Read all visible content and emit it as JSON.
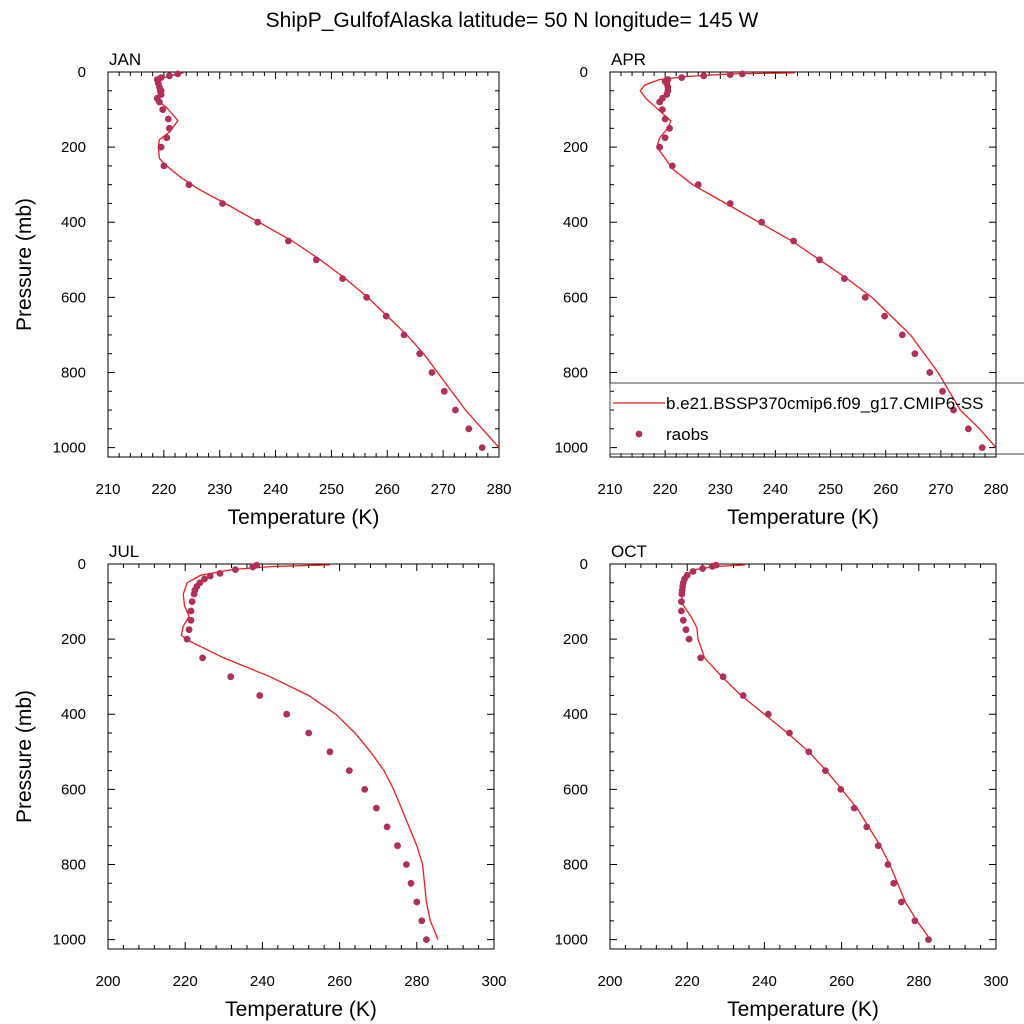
{
  "figure": {
    "title": "ShipP_GulfofAlaska  latitude= 50 N longitude= 145 W",
    "colors": {
      "model_line": "#ee1c1c",
      "obs_marker": "#b0305a",
      "axis": "#000000"
    }
  },
  "legend": {
    "panel": "APR",
    "entries": [
      {
        "label": "b.e21.BSSP370cmip6.f09_g17.CMIP6-SS",
        "kind": "line"
      },
      {
        "label": "raobs",
        "kind": "marker"
      }
    ]
  },
  "chart_data": [
    {
      "type": "line",
      "panel_label": "JAN",
      "xlabel": "Temperature (K)",
      "ylabel": "Pressure (mb)",
      "xlim": [
        210,
        280
      ],
      "ylim": [
        1025,
        0
      ],
      "xticks": [
        210,
        220,
        230,
        240,
        250,
        260,
        270,
        280
      ],
      "yticks": [
        0,
        200,
        400,
        600,
        800,
        1000
      ],
      "series": [
        {
          "name": "b.e21.BSSP370cmip6.f09_g17.CMIP6-SS",
          "style": "line",
          "points": [
            [
              223.5,
              2
            ],
            [
              221,
              10
            ],
            [
              219,
              20
            ],
            [
              218.8,
              40
            ],
            [
              219,
              60
            ],
            [
              219.2,
              80
            ],
            [
              220.5,
              95
            ],
            [
              222,
              120
            ],
            [
              222.5,
              130
            ],
            [
              221,
              160
            ],
            [
              219.2,
              180
            ],
            [
              219,
              200
            ],
            [
              219.2,
              230
            ],
            [
              220.5,
              250
            ],
            [
              223,
              280
            ],
            [
              226,
              310
            ],
            [
              231,
              350
            ],
            [
              237,
              400
            ],
            [
              243,
              450
            ],
            [
              248,
              500
            ],
            [
              252.5,
              550
            ],
            [
              256.5,
              600
            ],
            [
              260,
              650
            ],
            [
              263.5,
              700
            ],
            [
              266.5,
              750
            ],
            [
              269,
              800
            ],
            [
              271.5,
              850
            ],
            [
              274,
              900
            ],
            [
              277,
              950
            ],
            [
              280,
              1000
            ]
          ]
        },
        {
          "name": "raobs",
          "style": "marker",
          "points": [
            [
              222.5,
              5
            ],
            [
              221,
              10
            ],
            [
              219.5,
              15
            ],
            [
              218.8,
              20
            ],
            [
              219,
              30
            ],
            [
              219.2,
              40
            ],
            [
              219.5,
              50
            ],
            [
              219.5,
              60
            ],
            [
              218.8,
              70
            ],
            [
              219.2,
              80
            ],
            [
              219.8,
              100
            ],
            [
              220.8,
              125
            ],
            [
              221,
              150
            ],
            [
              220.5,
              175
            ],
            [
              219.5,
              200
            ],
            [
              220,
              250
            ],
            [
              224.5,
              300
            ],
            [
              230.5,
              350
            ],
            [
              236.8,
              400
            ],
            [
              242.3,
              450
            ],
            [
              247.3,
              500
            ],
            [
              252,
              550
            ],
            [
              256.3,
              600
            ],
            [
              259.8,
              650
            ],
            [
              263,
              700
            ],
            [
              265.8,
              750
            ],
            [
              268,
              800
            ],
            [
              270.2,
              850
            ],
            [
              272.2,
              900
            ],
            [
              274.6,
              950
            ],
            [
              277,
              1000
            ]
          ]
        }
      ]
    },
    {
      "type": "line",
      "panel_label": "APR",
      "xlabel": "Temperature (K)",
      "ylabel": "",
      "xlim": [
        210,
        280
      ],
      "ylim": [
        1025,
        0
      ],
      "xticks": [
        210,
        220,
        230,
        240,
        250,
        260,
        270,
        280
      ],
      "yticks": [
        0,
        200,
        400,
        600,
        800,
        1000
      ],
      "series": [
        {
          "name": "b.e21.BSSP370cmip6.f09_g17.CMIP6-SS",
          "style": "line",
          "points": [
            [
              243.5,
              2
            ],
            [
              232,
              5
            ],
            [
              224,
              12
            ],
            [
              219,
              20
            ],
            [
              216.3,
              35
            ],
            [
              215.5,
              50
            ],
            [
              216.5,
              70
            ],
            [
              218,
              90
            ],
            [
              219.5,
              110
            ],
            [
              221,
              130
            ],
            [
              220.5,
              150
            ],
            [
              219,
              175
            ],
            [
              218.5,
              200
            ],
            [
              220,
              230
            ],
            [
              221.5,
              260
            ],
            [
              225,
              300
            ],
            [
              231,
              350
            ],
            [
              237,
              400
            ],
            [
              243,
              450
            ],
            [
              248,
              500
            ],
            [
              253,
              550
            ],
            [
              257.5,
              600
            ],
            [
              261,
              650
            ],
            [
              264.5,
              700
            ],
            [
              267,
              750
            ],
            [
              269.5,
              800
            ],
            [
              271.5,
              850
            ],
            [
              273.5,
              900
            ],
            [
              277,
              950
            ],
            [
              280,
              1000
            ]
          ]
        },
        {
          "name": "raobs",
          "style": "marker",
          "points": [
            [
              234,
              5
            ],
            [
              231.8,
              7
            ],
            [
              227,
              10
            ],
            [
              223,
              15
            ],
            [
              220.5,
              20
            ],
            [
              220,
              25
            ],
            [
              220.3,
              30
            ],
            [
              220.5,
              40
            ],
            [
              220.5,
              50
            ],
            [
              220.3,
              60
            ],
            [
              219.5,
              70
            ],
            [
              219,
              80
            ],
            [
              219.5,
              100
            ],
            [
              220,
              125
            ],
            [
              220.8,
              150
            ],
            [
              220,
              175
            ],
            [
              219,
              200
            ],
            [
              221.3,
              250
            ],
            [
              226,
              300
            ],
            [
              231.8,
              350
            ],
            [
              237.5,
              400
            ],
            [
              243.3,
              450
            ],
            [
              248,
              500
            ],
            [
              252.5,
              550
            ],
            [
              256.3,
              600
            ],
            [
              259.8,
              650
            ],
            [
              263,
              700
            ],
            [
              265.3,
              750
            ],
            [
              268,
              800
            ],
            [
              270.3,
              850
            ],
            [
              272.3,
              900
            ],
            [
              275,
              950
            ],
            [
              277.5,
              1000
            ]
          ]
        }
      ]
    },
    {
      "type": "line",
      "panel_label": "JUL",
      "xlabel": "Temperature (K)",
      "ylabel": "Pressure (mb)",
      "xlim": [
        200,
        300
      ],
      "ylim": [
        1025,
        0
      ],
      "xticks": [
        200,
        220,
        240,
        260,
        280,
        300
      ],
      "yticks": [
        0,
        200,
        400,
        600,
        800,
        1000
      ],
      "series": [
        {
          "name": "b.e21.BSSP370cmip6.f09_g17.CMIP6-SS",
          "style": "line",
          "points": [
            [
              257.5,
              2
            ],
            [
              242,
              7
            ],
            [
              232,
              15
            ],
            [
              224,
              30
            ],
            [
              220.5,
              50
            ],
            [
              219.5,
              80
            ],
            [
              219.8,
              110
            ],
            [
              221,
              140
            ],
            [
              219.5,
              165
            ],
            [
              219,
              190
            ],
            [
              221,
              205
            ],
            [
              230,
              250
            ],
            [
              242,
              300
            ],
            [
              252,
              350
            ],
            [
              259,
              400
            ],
            [
              264,
              450
            ],
            [
              268,
              500
            ],
            [
              271.5,
              550
            ],
            [
              274,
              600
            ],
            [
              276,
              650
            ],
            [
              278,
              700
            ],
            [
              280,
              750
            ],
            [
              281.5,
              800
            ],
            [
              282,
              850
            ],
            [
              282.5,
              900
            ],
            [
              283.5,
              950
            ],
            [
              285.5,
              1000
            ]
          ]
        },
        {
          "name": "raobs",
          "style": "marker",
          "points": [
            [
              238.5,
              3
            ],
            [
              237.5,
              8
            ],
            [
              233,
              15
            ],
            [
              229,
              25
            ],
            [
              226.5,
              32
            ],
            [
              225,
              40
            ],
            [
              223.8,
              50
            ],
            [
              223,
              60
            ],
            [
              222.5,
              70
            ],
            [
              222.3,
              80
            ],
            [
              221.8,
              100
            ],
            [
              221.5,
              125
            ],
            [
              221.5,
              150
            ],
            [
              221,
              175
            ],
            [
              220.5,
              200
            ],
            [
              224.5,
              250
            ],
            [
              231.8,
              300
            ],
            [
              239.3,
              350
            ],
            [
              246.3,
              400
            ],
            [
              252,
              450
            ],
            [
              257.5,
              500
            ],
            [
              262.5,
              550
            ],
            [
              266.5,
              600
            ],
            [
              269.5,
              650
            ],
            [
              272.3,
              700
            ],
            [
              275,
              750
            ],
            [
              277.3,
              800
            ],
            [
              278.5,
              850
            ],
            [
              280,
              900
            ],
            [
              281.3,
              950
            ],
            [
              282.5,
              1000
            ]
          ]
        }
      ]
    },
    {
      "type": "line",
      "panel_label": "OCT",
      "xlabel": "Temperature (K)",
      "ylabel": "",
      "xlim": [
        200,
        300
      ],
      "ylim": [
        1025,
        0
      ],
      "xticks": [
        200,
        220,
        240,
        260,
        280,
        300
      ],
      "yticks": [
        0,
        200,
        400,
        600,
        800,
        1000
      ],
      "series": [
        {
          "name": "b.e21.BSSP370cmip6.f09_g17.CMIP6-SS",
          "style": "line",
          "points": [
            [
              235,
              2
            ],
            [
              227,
              7
            ],
            [
              222,
              15
            ],
            [
              219.5,
              30
            ],
            [
              218.5,
              50
            ],
            [
              218.5,
              80
            ],
            [
              219,
              110
            ],
            [
              221,
              140
            ],
            [
              222.5,
              170
            ],
            [
              222.8,
              200
            ],
            [
              224.5,
              250
            ],
            [
              229,
              300
            ],
            [
              234,
              350
            ],
            [
              240,
              400
            ],
            [
              246,
              450
            ],
            [
              251.5,
              500
            ],
            [
              256,
              550
            ],
            [
              260,
              600
            ],
            [
              264,
              650
            ],
            [
              267,
              700
            ],
            [
              270,
              750
            ],
            [
              272.5,
              800
            ],
            [
              274.5,
              850
            ],
            [
              276.5,
              900
            ],
            [
              279.5,
              950
            ],
            [
              283,
              1000
            ]
          ]
        },
        {
          "name": "raobs",
          "style": "marker",
          "points": [
            [
              227.5,
              3
            ],
            [
              226.5,
              6
            ],
            [
              224,
              12
            ],
            [
              221.5,
              20
            ],
            [
              220,
              30
            ],
            [
              219.3,
              40
            ],
            [
              219,
              50
            ],
            [
              218.8,
              60
            ],
            [
              218.7,
              70
            ],
            [
              218.6,
              80
            ],
            [
              218.5,
              100
            ],
            [
              218.5,
              125
            ],
            [
              219,
              150
            ],
            [
              219.7,
              175
            ],
            [
              220.5,
              200
            ],
            [
              223.5,
              250
            ],
            [
              229.3,
              300
            ],
            [
              234.5,
              350
            ],
            [
              241,
              400
            ],
            [
              246.5,
              450
            ],
            [
              251.5,
              500
            ],
            [
              255.8,
              550
            ],
            [
              259.8,
              600
            ],
            [
              263.3,
              650
            ],
            [
              266.5,
              700
            ],
            [
              269.5,
              750
            ],
            [
              272,
              800
            ],
            [
              273.5,
              850
            ],
            [
              275.5,
              900
            ],
            [
              279,
              950
            ],
            [
              282.5,
              1000
            ]
          ]
        }
      ]
    }
  ]
}
